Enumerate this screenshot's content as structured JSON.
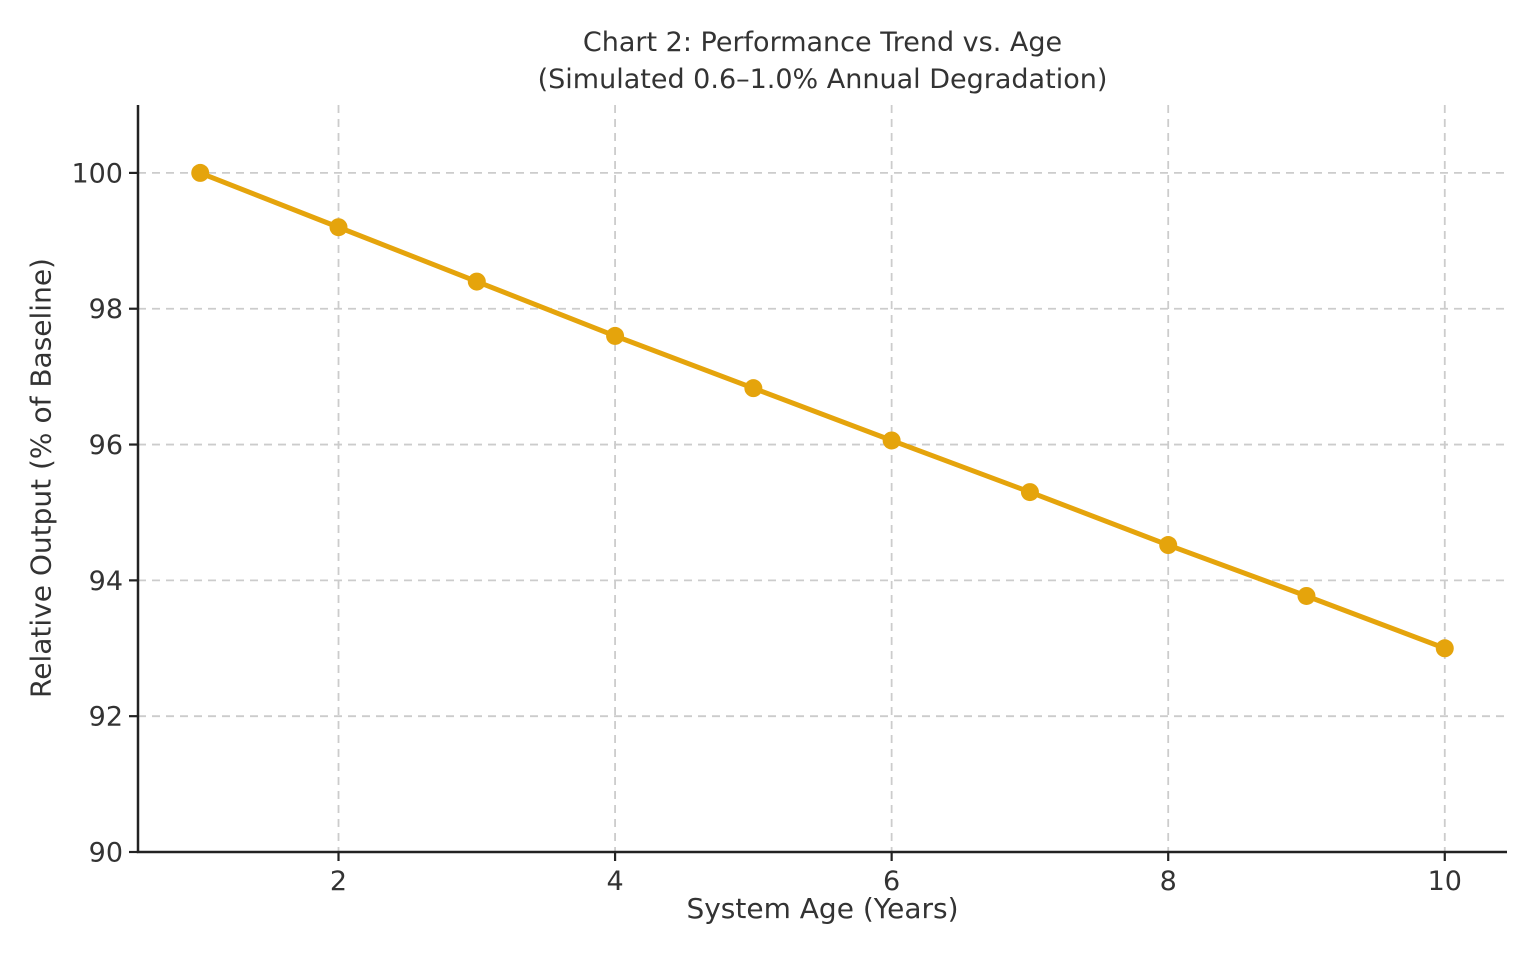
{
  "figure": {
    "background_color": "#ffffff",
    "text_color": "#333333"
  },
  "chart_data": {
    "type": "line",
    "title": "Chart 2: Performance Trend vs. Age",
    "subtitle": "(Simulated 0.6–1.0% Annual Degradation)",
    "xlabel": "System Age (Years)",
    "ylabel": "Relative Output (% of Baseline)",
    "x": [
      1,
      2,
      3,
      4,
      5,
      6,
      7,
      8,
      9,
      10
    ],
    "y": [
      100.0,
      99.2,
      98.4,
      97.6,
      96.83,
      96.06,
      95.3,
      94.52,
      93.77,
      93.0
    ],
    "xlim": [
      0.55,
      10.45
    ],
    "ylim": [
      90,
      101
    ],
    "xticks": [
      2,
      4,
      6,
      8,
      10
    ],
    "yticks": [
      90,
      92,
      94,
      96,
      98,
      100
    ],
    "grid": true,
    "grid_style": "dashed",
    "legend_position": "none",
    "line_color": "#E5A40C",
    "marker": "circle",
    "marker_radius": 9,
    "line_width": 5,
    "grid_color": "#cccccc",
    "spine_color": "#222222",
    "tick_color": "#222222"
  }
}
